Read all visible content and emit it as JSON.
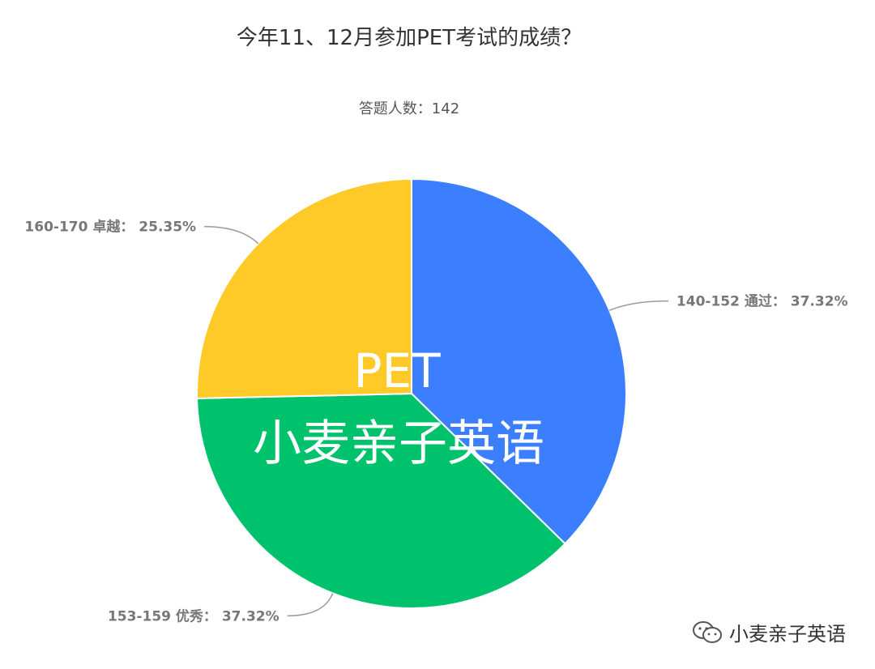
{
  "chart_data": {
    "type": "pie",
    "title": "今年11、12月参加PET考试的成绩？",
    "subtitle": "答题人数：142",
    "slices": [
      {
        "label": "140-152 通过",
        "value": 37.32,
        "display": "140-152 通过： 37.32%",
        "color": "#3B7FFF"
      },
      {
        "label": "153-159 优秀",
        "value": 37.32,
        "display": "153-159 优秀： 37.32%",
        "color": "#00C26C"
      },
      {
        "label": "160-170 卓越",
        "value": 25.35,
        "display": "160-170 卓越： 25.35%",
        "color": "#FFCA28"
      }
    ]
  },
  "watermark": {
    "line1": "PET",
    "line2": "小麦亲子英语"
  },
  "footer": {
    "brand": "小麦亲子英语",
    "icon": "wechat-icon"
  }
}
